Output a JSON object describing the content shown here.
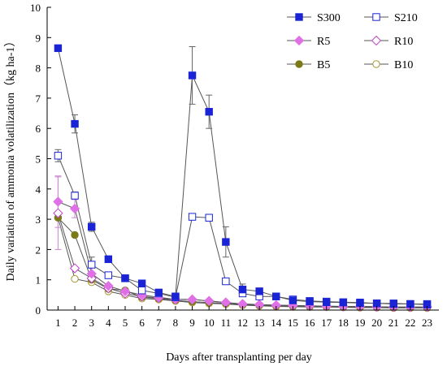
{
  "chart_data": {
    "type": "line",
    "title": "",
    "xlabel": "Days after transplanting  per day",
    "ylabel": "Daily variation of ammonia volatilization（kg ha-1）",
    "x": [
      1,
      2,
      3,
      4,
      5,
      6,
      7,
      8,
      9,
      10,
      11,
      12,
      13,
      14,
      15,
      16,
      17,
      18,
      19,
      20,
      21,
      22,
      23
    ],
    "x_tick_labels": [
      "1",
      "2",
      "3",
      "4",
      "5",
      "6",
      "7",
      "8",
      "9",
      "10",
      "11",
      "12",
      "13",
      "14",
      "15",
      "16",
      "17",
      "18",
      "19",
      "20",
      "21",
      "22",
      "23"
    ],
    "xlim": [
      0.35,
      23.7
    ],
    "ylim": [
      0,
      10
    ],
    "y_ticks": [
      0,
      1,
      2,
      3,
      4,
      5,
      6,
      7,
      8,
      9,
      10
    ],
    "y_tick_labels": [
      "0",
      "1",
      "2",
      "3",
      "4",
      "5",
      "6",
      "7",
      "8",
      "9",
      "10"
    ],
    "grid": false,
    "legend_position": "top-right",
    "series": [
      {
        "name": "S300",
        "color": "#1a24d6",
        "marker": "square-filled",
        "values": [
          8.65,
          6.15,
          2.75,
          1.68,
          1.05,
          0.88,
          0.58,
          0.45,
          7.75,
          6.55,
          2.25,
          0.68,
          0.62,
          0.45,
          0.32,
          0.28,
          0.26,
          0.25,
          0.23,
          0.22,
          0.2,
          0.2,
          0.18
        ],
        "error": [
          0,
          0.3,
          0.15,
          0.1,
          0,
          0,
          0,
          0,
          0.95,
          0.55,
          0.5,
          0.18,
          0,
          0,
          0,
          0,
          0,
          0,
          0,
          0,
          0,
          0,
          0
        ]
      },
      {
        "name": "S210",
        "color": "#1a24d6",
        "marker": "square-open",
        "values": [
          5.1,
          3.78,
          1.5,
          1.15,
          1.05,
          0.65,
          0.55,
          0.42,
          3.08,
          3.05,
          0.95,
          0.55,
          0.45,
          0.45,
          0.35,
          0.3,
          0.28,
          0.26,
          0.25,
          0.22,
          0.22,
          0.2,
          0.2
        ],
        "error": [
          0.2,
          0.12,
          0.25,
          0,
          0,
          0,
          0,
          0,
          0,
          0,
          0,
          0,
          0,
          0,
          0,
          0,
          0,
          0,
          0,
          0,
          0,
          0,
          0
        ]
      },
      {
        "name": "R5",
        "color": "#e070e6",
        "marker": "diamond-filled",
        "values": [
          3.58,
          3.35,
          1.2,
          0.8,
          0.62,
          0.5,
          0.42,
          0.35,
          0.35,
          0.3,
          0.25,
          0.2,
          0.18,
          0.16,
          0.15,
          0.14,
          0.13,
          0.12,
          0.12,
          0.11,
          0.1,
          0.1,
          0.1
        ],
        "error": [
          0.85,
          0.3,
          0,
          0,
          0,
          0,
          0,
          0,
          0,
          0,
          0,
          0,
          0,
          0,
          0,
          0,
          0,
          0,
          0,
          0,
          0,
          0,
          0
        ]
      },
      {
        "name": "R10",
        "color": "#c040c8",
        "marker": "diamond-open",
        "values": [
          3.2,
          1.38,
          1.05,
          0.72,
          0.55,
          0.45,
          0.4,
          0.35,
          0.35,
          0.3,
          0.25,
          0.2,
          0.18,
          0.16,
          0.15,
          0.14,
          0.13,
          0.12,
          0.12,
          0.11,
          0.1,
          0.1,
          0.1
        ],
        "error": [
          1.2,
          0,
          0,
          0,
          0,
          0,
          0,
          0,
          0,
          0,
          0,
          0,
          0,
          0,
          0,
          0,
          0,
          0,
          0,
          0,
          0,
          0,
          0
        ]
      },
      {
        "name": "B5",
        "color": "#7a7a18",
        "marker": "circle-filled",
        "values": [
          3.05,
          2.48,
          1.0,
          0.7,
          0.65,
          0.42,
          0.38,
          0.32,
          0.28,
          0.25,
          0.22,
          0.18,
          0.16,
          0.14,
          0.13,
          0.12,
          0.11,
          0.1,
          0.1,
          0.09,
          0.08,
          0.08,
          0.08
        ],
        "error": [
          0,
          0,
          0,
          0,
          0,
          0,
          0,
          0,
          0,
          0,
          0,
          0,
          0,
          0,
          0,
          0,
          0,
          0,
          0,
          0,
          0,
          0,
          0
        ]
      },
      {
        "name": "B10",
        "color": "#a89830",
        "marker": "circle-open",
        "values": [
          3.05,
          1.03,
          0.92,
          0.62,
          0.5,
          0.38,
          0.35,
          0.3,
          0.25,
          0.22,
          0.2,
          0.16,
          0.14,
          0.12,
          0.11,
          0.1,
          0.1,
          0.09,
          0.08,
          0.08,
          0.07,
          0.07,
          0.07
        ],
        "error": [
          0,
          0,
          0,
          0,
          0,
          0,
          0,
          0,
          0,
          0,
          0,
          0,
          0,
          0,
          0,
          0,
          0,
          0,
          0,
          0,
          0,
          0,
          0
        ]
      }
    ]
  }
}
